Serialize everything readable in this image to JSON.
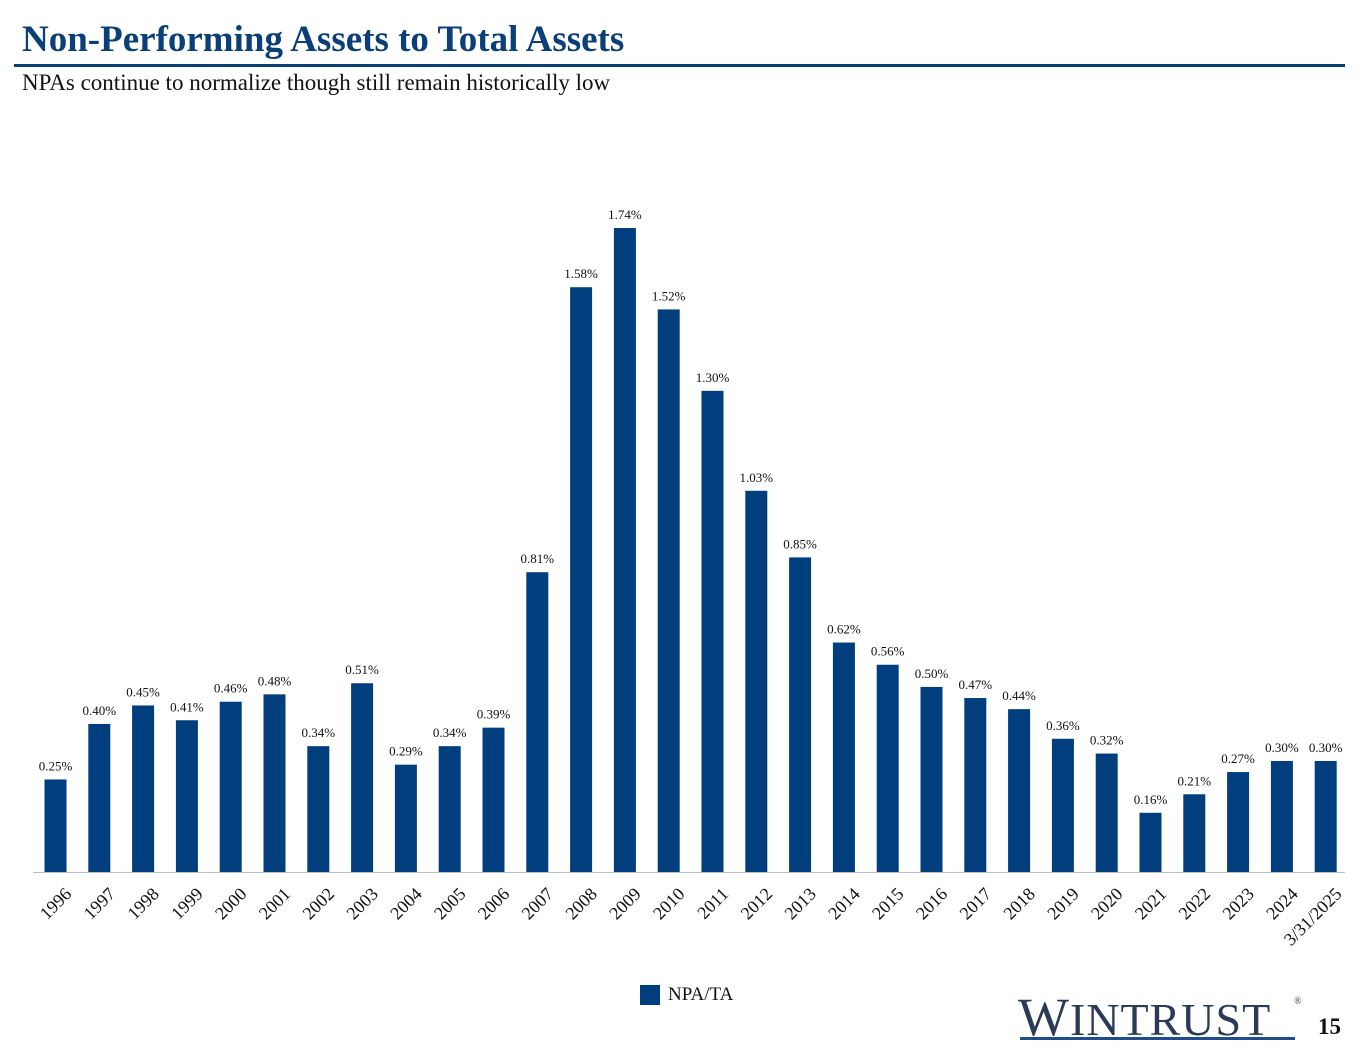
{
  "header": {
    "title": "Non-Performing Assets to Total Assets",
    "subtitle": "NPAs continue to normalize though still remain historically low"
  },
  "chart_data": {
    "type": "bar",
    "categories": [
      "1996",
      "1997",
      "1998",
      "1999",
      "2000",
      "2001",
      "2002",
      "2003",
      "2004",
      "2005",
      "2006",
      "2007",
      "2008",
      "2009",
      "2010",
      "2011",
      "2012",
      "2013",
      "2014",
      "2015",
      "2016",
      "2017",
      "2018",
      "2019",
      "2020",
      "2021",
      "2022",
      "2023",
      "2024",
      "3/31/2025"
    ],
    "series": [
      {
        "name": "NPA/TA",
        "values": [
          0.25,
          0.4,
          0.45,
          0.41,
          0.46,
          0.48,
          0.34,
          0.51,
          0.29,
          0.34,
          0.39,
          0.81,
          1.58,
          1.74,
          1.52,
          1.3,
          1.03,
          0.85,
          0.62,
          0.56,
          0.5,
          0.47,
          0.44,
          0.36,
          0.32,
          0.16,
          0.21,
          0.27,
          0.3,
          0.3
        ],
        "labels": [
          "0.25%",
          "0.40%",
          "0.45%",
          "0.41%",
          "0.46%",
          "0.48%",
          "0.34%",
          "0.51%",
          "0.29%",
          "0.34%",
          "0.39%",
          "0.81%",
          "1.58%",
          "1.74%",
          "1.52%",
          "1.30%",
          "1.03%",
          "0.85%",
          "0.62%",
          "0.56%",
          "0.50%",
          "0.47%",
          "0.44%",
          "0.36%",
          "0.32%",
          "0.16%",
          "0.21%",
          "0.27%",
          "0.30%",
          "0.30%"
        ]
      }
    ],
    "ylim": [
      0,
      1.74
    ],
    "grid": false,
    "legend_position": "bottom",
    "bar_color": "#003e7e"
  },
  "legend": {
    "label": "NPA/TA"
  },
  "branding": {
    "logo_first": "W",
    "logo_rest": "INTRUST",
    "logo_mark": "®"
  },
  "page_number": "15"
}
